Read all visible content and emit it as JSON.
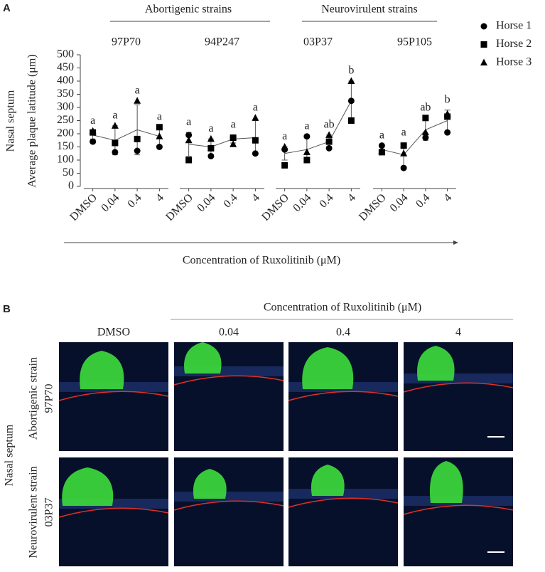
{
  "panel_a": {
    "label": "A",
    "row_label": "Nasal septum",
    "groups": [
      {
        "title": "Abortigenic strains"
      },
      {
        "title": "Neurovirulent strains"
      }
    ],
    "chart_data": {
      "type": "line",
      "ylabel": "Average plaque latitude (μm)",
      "xlabel": "Concentration of Ruxolitinib (μM)",
      "categories": [
        "DMSO",
        "0.04",
        "0.4",
        "4"
      ],
      "ylim": [
        0,
        500
      ],
      "yticks": [
        0,
        50,
        100,
        150,
        200,
        250,
        300,
        350,
        400,
        450,
        500
      ],
      "series": [
        {
          "name": "Horse 1",
          "marker": "circle",
          "color": "#000000"
        },
        {
          "name": "Horse 2",
          "marker": "square",
          "color": "#000000"
        },
        {
          "name": "Horse 3",
          "marker": "triangle",
          "color": "#000000"
        }
      ],
      "panels": [
        {
          "title": "97P70",
          "values": [
            [
              170,
              130,
              135,
              150
            ],
            [
              205,
              165,
              180,
              225
            ],
            [
              210,
              230,
              325,
              190
            ]
          ],
          "mean": [
            195,
            175,
            215,
            190
          ],
          "sd": [
            15,
            55,
            95,
            35
          ],
          "letters": [
            "a",
            "a",
            "a",
            "a"
          ]
        },
        {
          "title": "94P247",
          "values": [
            [
              195,
              115,
              185,
              125
            ],
            [
              100,
              145,
              185,
              175
            ],
            [
              175,
              180,
              160,
              260
            ]
          ],
          "mean": [
            160,
            150,
            180,
            185
          ],
          "sd": [
            45,
            30,
            15,
            65
          ],
          "letters": [
            "a",
            "a",
            "a",
            "a"
          ]
        },
        {
          "title": "03P37",
          "values": [
            [
              140,
              190,
              145,
              325
            ],
            [
              80,
              100,
              170,
              250
            ],
            [
              150,
              130,
              195,
              400
            ]
          ],
          "mean": [
            125,
            140,
            170,
            325
          ],
          "sd": [
            25,
            45,
            25,
            75
          ],
          "letters": [
            "a",
            "a",
            "ab",
            "b"
          ]
        },
        {
          "title": "95P105",
          "values": [
            [
              155,
              70,
              185,
              205
            ],
            [
              130,
              155,
              260,
              265
            ],
            [
              135,
              125,
              205,
              275
            ]
          ],
          "mean": [
            140,
            120,
            215,
            250
          ],
          "sd": [
            15,
            45,
            40,
            40
          ],
          "letters": [
            "a",
            "a",
            "ab",
            "b"
          ]
        }
      ]
    }
  },
  "panel_b": {
    "label": "B",
    "title": "Concentration of Ruxolitinib (μM)",
    "row_label": "Nasal septum",
    "columns": [
      "DMSO",
      "0.04",
      "0.4",
      "4"
    ],
    "rows": [
      {
        "type": "Abortigenic strain",
        "strain": "97P70"
      },
      {
        "type": "Neurovirulent strain",
        "strain": "03P37"
      }
    ]
  }
}
